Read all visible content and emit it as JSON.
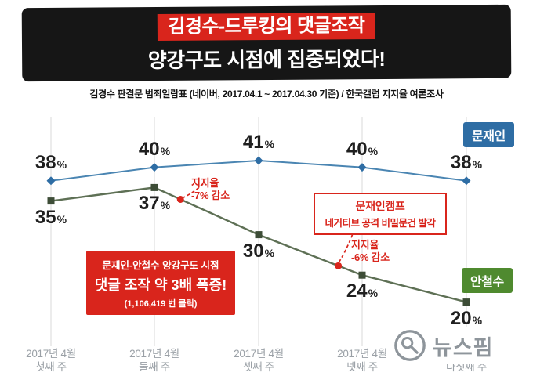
{
  "header": {
    "title_line1": "김경수-드루킹의 댓글조작",
    "title_line2": "양강구도 시점에 집중되었다!",
    "subtitle": "김경수 판결문 범죄일람표 (네이버, 2017.04.1 ~ 2017.04.30 기준) / 한국갤럽 지지율 여론조사"
  },
  "chart_data": {
    "type": "line",
    "title": "김경수-드루킹의 댓글조작 양강구도 시점에 집중되었다!",
    "unit": "%",
    "ylim": [
      18,
      43
    ],
    "grid": "vertical-only",
    "legend_position": "right-inline-tags",
    "categories": [
      {
        "line1": "2017년 4월",
        "line2": "첫째 주"
      },
      {
        "line1": "2017년 4월",
        "line2": "둘째 주"
      },
      {
        "line1": "2017년 4월",
        "line2": "셋째 주"
      },
      {
        "line1": "2017년 4월",
        "line2": "넷째 주"
      },
      {
        "line1": "2017년 4월",
        "line2": "다섯째 주"
      }
    ],
    "series": [
      {
        "name": "문재인",
        "marker": "diamond",
        "values": [
          38,
          40,
          41,
          40,
          38
        ]
      },
      {
        "name": "안철수",
        "marker": "square",
        "values": [
          35,
          37,
          30,
          24,
          20
        ]
      }
    ],
    "annotations": {
      "drop1": {
        "line1": "지지율",
        "line2": "-7% 감소"
      },
      "drop2": {
        "line1": "지지율",
        "line2": "-6% 감소"
      },
      "surge_box": {
        "line1": "문재인-안철수 양강구도 시점",
        "line2": "댓글 조작 약 3배 폭증!",
        "line3": "(1,106,419 번 클릭)"
      },
      "doc_box": {
        "line1": "문재인캠프",
        "line2": "네거티브 공격 비밀문건 발각"
      }
    }
  },
  "colors": {
    "banner_bg": "#161616",
    "red": "#d9251c",
    "moon_tag": "#2e6da4",
    "moon_line": "#4a85b2",
    "moon_marker": "#2e6da4",
    "ahn_tag": "#4f8a2f",
    "ahn_line": "#5e7055",
    "ahn_marker": "#3d4d37",
    "grid": "#d9d9d9",
    "label_dark": "#1f1f1f",
    "axis_gray": "#9aa0a6",
    "watermark_gray": "#8e959b"
  },
  "watermark": {
    "text": "뉴스핌"
  }
}
